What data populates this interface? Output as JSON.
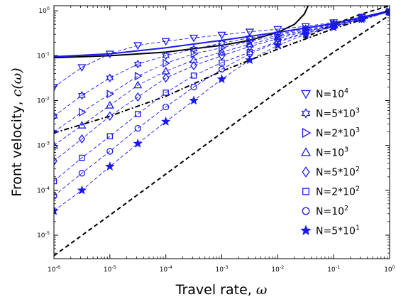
{
  "chart_data": {
    "type": "scatter",
    "xlabel": "Travel rate, ",
    "xlabel_symbol": "ω",
    "ylabel": "Front velocity, ",
    "ylabel_symbol": "c(ω)",
    "xscale": "log",
    "yscale": "log",
    "xlim": [
      1e-06,
      1
    ],
    "ylim": [
      3e-06,
      1.3
    ],
    "x_ticks": [
      {
        "base": "10",
        "exp": "-6",
        "value": 1e-06
      },
      {
        "base": "10",
        "exp": "-5",
        "value": 1e-05
      },
      {
        "base": "10",
        "exp": "-4",
        "value": 0.0001
      },
      {
        "base": "10",
        "exp": "-3",
        "value": 0.001
      },
      {
        "base": "10",
        "exp": "-2",
        "value": 0.01
      },
      {
        "base": "10",
        "exp": "-1",
        "value": 0.1
      },
      {
        "base": "10",
        "exp": "0",
        "value": 1
      }
    ],
    "y_ticks": [
      {
        "base": "10",
        "exp": "-5",
        "value": 1e-05
      },
      {
        "base": "10",
        "exp": "-4",
        "value": 0.0001
      },
      {
        "base": "10",
        "exp": "-3",
        "value": 0.001
      },
      {
        "base": "10",
        "exp": "-2",
        "value": 0.01
      },
      {
        "base": "10",
        "exp": "-1",
        "value": 0.1
      },
      {
        "base": "10",
        "exp": "0",
        "value": 1
      }
    ],
    "grid": false,
    "legend_position": "right",
    "series_color": "#1a1aee",
    "x": [
      1e-06,
      3.16e-06,
      1e-05,
      3.16e-05,
      0.0001,
      0.000316,
      0.001,
      0.00316,
      0.01,
      0.0316,
      0.1,
      0.316,
      1
    ],
    "series": [
      {
        "name_base": "N=10",
        "name_exp": "4",
        "marker": "triangle-down",
        "values": [
          0.02,
          0.055,
          0.11,
          0.17,
          0.21,
          0.25,
          0.29,
          0.34,
          0.39,
          0.45,
          0.55,
          0.72,
          0.95
        ]
      },
      {
        "name_base": "N=5*10",
        "name_exp": "3",
        "marker": "hexagram",
        "values": [
          0.0045,
          0.013,
          0.032,
          0.065,
          0.1,
          0.14,
          0.19,
          0.25,
          0.3,
          0.4,
          0.52,
          0.7,
          0.95
        ]
      },
      {
        "name_base": "N=2*10",
        "name_exp": "3",
        "marker": "triangle-right",
        "values": [
          0.002,
          0.0055,
          0.014,
          0.035,
          0.068,
          0.11,
          0.15,
          0.21,
          0.28,
          0.38,
          0.5,
          0.7,
          0.95
        ]
      },
      {
        "name_base": "N=10",
        "name_exp": "3",
        "marker": "triangle-up",
        "values": [
          0.001,
          0.0028,
          0.0078,
          0.022,
          0.045,
          0.08,
          0.12,
          0.18,
          0.26,
          0.36,
          0.48,
          0.68,
          0.95
        ]
      },
      {
        "name_base": "N=5*10",
        "name_exp": "2",
        "marker": "diamond",
        "values": [
          0.00045,
          0.0014,
          0.0045,
          0.012,
          0.032,
          0.06,
          0.1,
          0.16,
          0.24,
          0.35,
          0.47,
          0.68,
          0.95
        ]
      },
      {
        "name_base": "N=2*10",
        "name_exp": "2",
        "marker": "square",
        "values": [
          0.00016,
          0.00053,
          0.0016,
          0.005,
          0.015,
          0.036,
          0.07,
          0.12,
          0.21,
          0.33,
          0.46,
          0.67,
          0.95
        ]
      },
      {
        "name_base": "N=10",
        "name_exp": "2",
        "marker": "circle",
        "values": [
          7.5e-05,
          0.00024,
          0.00074,
          0.0024,
          0.0072,
          0.02,
          0.05,
          0.11,
          0.2,
          0.32,
          0.45,
          0.66,
          0.95
        ]
      },
      {
        "name_base": "N=5*10",
        "name_exp": "1",
        "marker": "pentagram",
        "values": [
          3.5e-05,
          0.0001,
          0.00034,
          0.0011,
          0.0034,
          0.01,
          0.03,
          0.08,
          0.17,
          0.3,
          0.43,
          0.65,
          0.95
        ]
      }
    ],
    "lines": [
      {
        "name": "solid-black-curve",
        "style": "solid",
        "color": "#000000",
        "x": [
          1e-06,
          1e-05,
          0.0001,
          0.001,
          0.00316,
          0.01,
          0.02,
          0.03,
          0.035
        ],
        "y": [
          0.09,
          0.1,
          0.12,
          0.17,
          0.22,
          0.33,
          0.5,
          0.85,
          1.3
        ]
      },
      {
        "name": "solid-blue-curve",
        "style": "solid",
        "color": "#1a1aee",
        "x": [
          1e-06,
          1e-05,
          0.0001,
          0.001,
          0.01,
          0.1,
          1
        ],
        "y": [
          0.095,
          0.11,
          0.15,
          0.22,
          0.33,
          0.52,
          1.0
        ]
      },
      {
        "name": "dash-dot-black-curve",
        "style": "dashdot",
        "color": "#000000",
        "x": [
          1e-06,
          1e-05,
          0.0001,
          0.001,
          0.01,
          0.1,
          1
        ],
        "y": [
          0.0019,
          0.0045,
          0.0125,
          0.045,
          0.14,
          0.4,
          1.0
        ]
      },
      {
        "name": "dashed-black-diagonal",
        "style": "dashed",
        "color": "#000000",
        "x": [
          1e-06,
          1e-05,
          0.0001,
          0.001,
          0.01,
          0.1,
          1
        ],
        "y": [
          3.5e-06,
          2.8e-05,
          0.00023,
          0.0019,
          0.016,
          0.12,
          0.8
        ]
      },
      {
        "name": "dashed-black-upper",
        "style": "dashed",
        "color": "#000000",
        "x": [
          0.03,
          0.1,
          0.316,
          1
        ],
        "y": [
          0.25,
          0.5,
          0.85,
          1.3
        ]
      }
    ]
  }
}
